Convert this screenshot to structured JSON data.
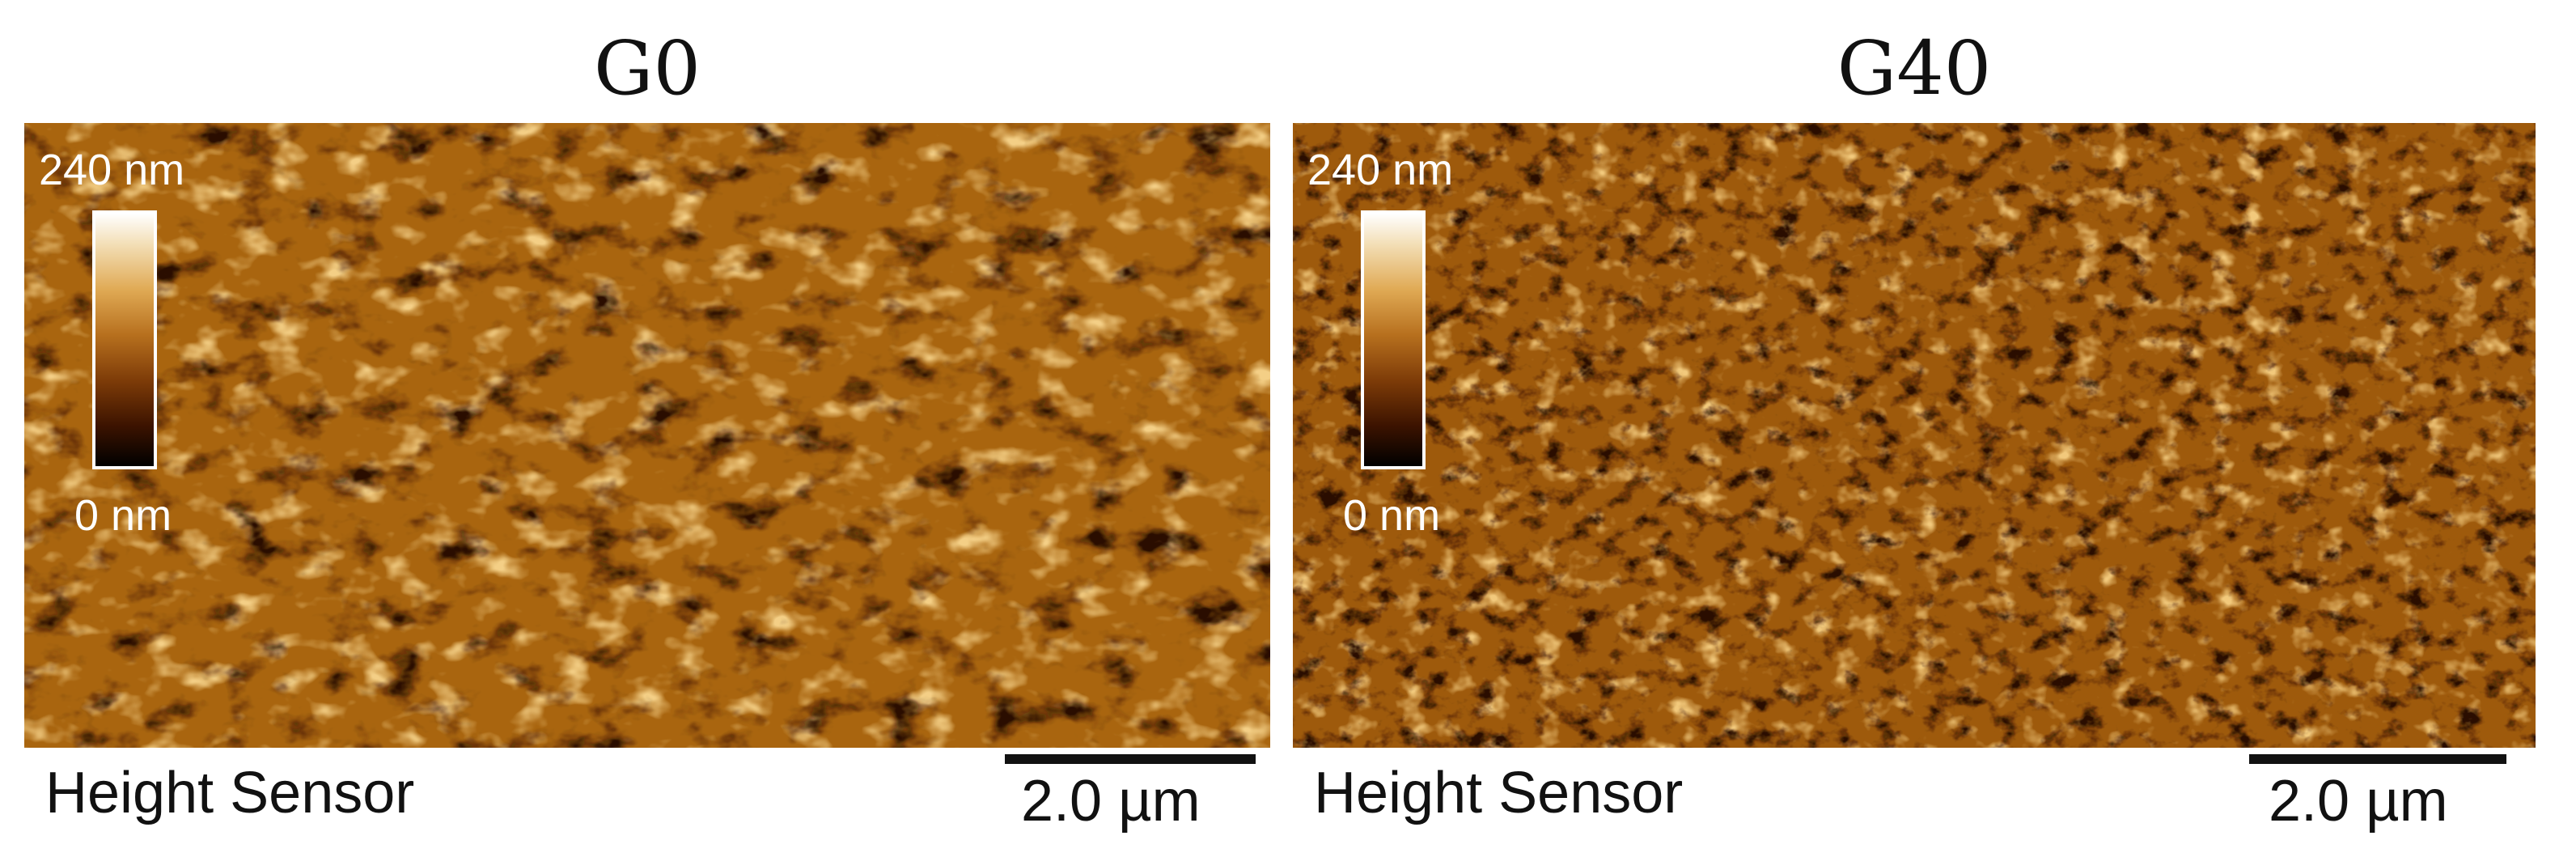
{
  "panels": [
    {
      "title": "G0",
      "channel_label": "Height Sensor",
      "scale_bar_label": "2.0 µm",
      "colorbar": {
        "max_label": "240 nm",
        "min_label": "0 nm"
      },
      "texture": {
        "pore_scale": "coarse",
        "seed": 7
      }
    },
    {
      "title": "G40",
      "channel_label": "Height Sensor",
      "scale_bar_label": "2.0 µm",
      "colorbar": {
        "max_label": "240 nm",
        "min_label": "0 nm"
      },
      "texture": {
        "pore_scale": "fine",
        "seed": 19
      }
    }
  ],
  "colors": {
    "afm_base": "#a9650f",
    "afm_pore": "#2a0d00",
    "afm_ridge": "#f4cf86",
    "text": "#111111",
    "overlay_text": "#ffffff"
  }
}
